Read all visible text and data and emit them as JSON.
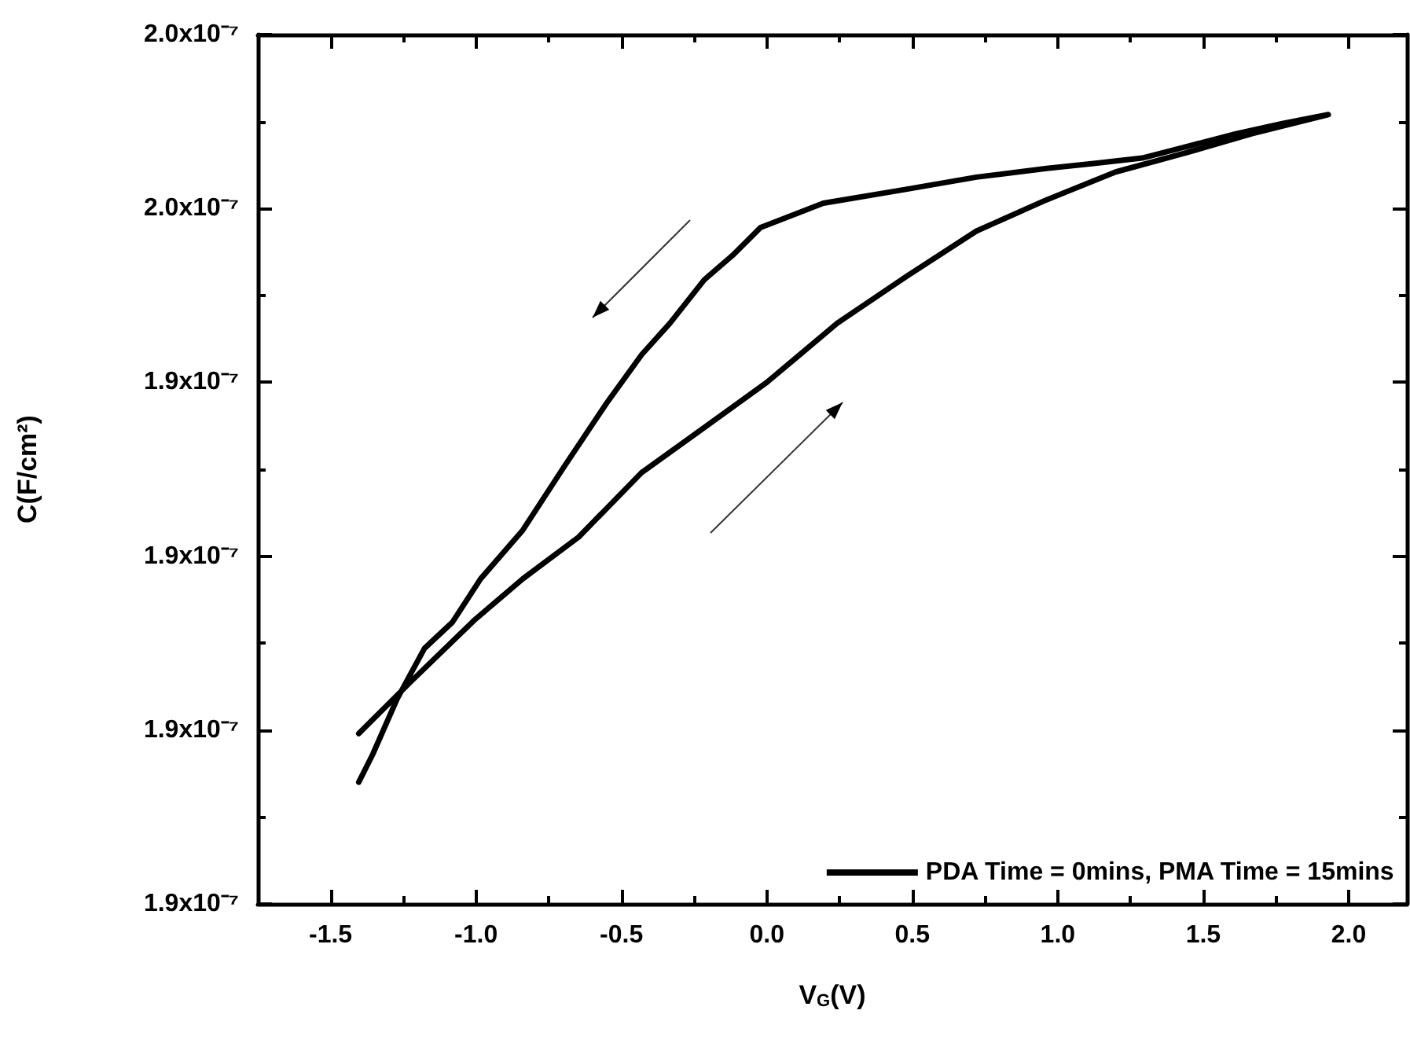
{
  "chart_data": {
    "type": "line",
    "xlabel": "V$_{G}$(V)",
    "ylabel": "C(F/cm²)",
    "series": [
      {
        "name": "PDA Time = 0mins, PMA Time = 15mins",
        "color": "#000000",
        "x": [
          -1.403,
          -1.223,
          -1.007,
          -0.839,
          -0.647,
          -0.431,
          -0.215,
          0.0,
          0.242,
          0.481,
          0.72,
          0.962,
          1.199,
          1.441,
          1.667,
          1.93,
          1.775,
          1.613,
          1.452,
          1.29,
          1.129,
          0.962,
          0.72,
          0.478,
          0.194,
          -0.022,
          -0.118,
          -0.215,
          -0.333,
          -0.43,
          -0.551,
          -0.695,
          -0.839,
          -0.984,
          -1.081,
          -1.177,
          -1.271,
          -1.355,
          -1.403
        ],
        "values": [
          1.8996e-07,
          1.9056e-07,
          1.9126e-07,
          1.9174e-07,
          1.9222e-07,
          1.9296e-07,
          1.9348e-07,
          1.94e-07,
          1.9468e-07,
          1.9522e-07,
          1.9574e-07,
          1.961e-07,
          1.9642e-07,
          1.9664e-07,
          1.9686e-07,
          1.9708e-07,
          1.9698e-07,
          1.9686e-07,
          1.9672e-07,
          1.9658e-07,
          1.9652e-07,
          1.9646e-07,
          1.9636e-07,
          1.9622e-07,
          1.9606e-07,
          1.9578e-07,
          1.9546e-07,
          1.9518e-07,
          1.9468e-07,
          1.9432e-07,
          1.9376e-07,
          1.9304e-07,
          1.923e-07,
          1.9174e-07,
          1.9124e-07,
          1.9094e-07,
          1.9036e-07,
          1.8972e-07,
          1.894e-07
        ]
      }
    ],
    "xlim": [
      -1.75,
      2.2
    ],
    "xticks": [
      {
        "value": -1.5,
        "label": "-1.5"
      },
      {
        "value": -1.0,
        "label": "-1.0"
      },
      {
        "value": -0.5,
        "label": "-0.5"
      },
      {
        "value": 0.0,
        "label": "0.0"
      },
      {
        "value": 0.5,
        "label": "0.5"
      },
      {
        "value": 1.0,
        "label": "1.0"
      },
      {
        "value": 1.5,
        "label": "1.5"
      },
      {
        "value": 2.0,
        "label": "2.0"
      }
    ],
    "ylim": [
      1.88e-07,
      1.98e-07
    ],
    "yticks": [
      {
        "value": 1.88e-07,
        "label": "1.9x10⁻⁷"
      },
      {
        "value": 1.9e-07,
        "label": "1.9x10⁻⁷"
      },
      {
        "value": 1.92e-07,
        "label": "1.9x10⁻⁷"
      },
      {
        "value": 1.94e-07,
        "label": "1.9x10⁻⁷"
      },
      {
        "value": 1.96e-07,
        "label": "2.0x10⁻⁷"
      },
      {
        "value": 1.98e-07,
        "label": "2.0x10⁻⁷"
      }
    ],
    "grid": false,
    "legend": "bottom right",
    "marker": "none",
    "line_style": "solid"
  }
}
